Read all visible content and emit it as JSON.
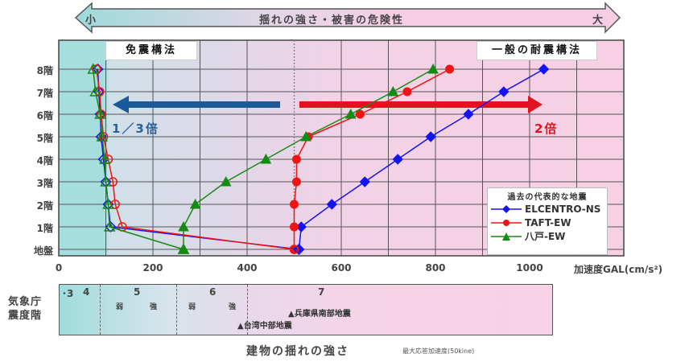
{
  "banner": {
    "left_label": "小",
    "center_label": "揺れの強さ・被害の危険性",
    "right_label": "大"
  },
  "annotations": {
    "isolation_box": "免震構法",
    "conventional_box": "一般の耐震構法",
    "isolation_ratio": "1／3倍",
    "conventional_ratio": "2倍",
    "isolation_color": "#1a5a9a",
    "conventional_color": "#e0141e"
  },
  "axis": {
    "x_unit": "加速度GAL(cm/s²)",
    "x_ticks": [
      "0",
      "200",
      "400",
      "600",
      "800",
      "1000"
    ],
    "y_ticks": [
      "8階",
      "7階",
      "6階",
      "5階",
      "4階",
      "3階",
      "2階",
      "1階",
      "地盤"
    ]
  },
  "legend": {
    "title": "過去の代表的な地震",
    "items": [
      {
        "label": "ELCENTRO-NS",
        "color": "#1414f0",
        "marker": "diamond"
      },
      {
        "label": "TAFT-EW",
        "color": "#f01414",
        "marker": "circle"
      },
      {
        "label": "八戸-EW",
        "color": "#148c14",
        "marker": "triangle"
      }
    ]
  },
  "jma_scale": {
    "label_line1": "気象庁",
    "label_line2": "震度階",
    "levels": [
      {
        "num": "･3",
        "x": 2
      },
      {
        "num": "4",
        "x": 30
      },
      {
        "num": "5",
        "x": 160,
        "weak": "弱",
        "strong": "強"
      },
      {
        "num": "6",
        "x": 318,
        "weak": "弱",
        "strong": "強"
      },
      {
        "num": "7",
        "x": 555
      }
    ],
    "events": [
      {
        "label": "▲兵庫県南部地震"
      },
      {
        "label": "▲台湾中部地震"
      }
    ]
  },
  "footer": {
    "title": "建物の揺れの強さ",
    "subtitle": "最大応答加速度(50kine)"
  },
  "chart_data": {
    "type": "line",
    "title": "揺れの強さ・被害の危険性",
    "xlabel": "加速度GAL(cm/s²)",
    "ylabel": "",
    "xlim": [
      0,
      1200
    ],
    "categories": [
      "地盤",
      "1階",
      "2階",
      "3階",
      "4階",
      "5階",
      "6階",
      "7階",
      "8階"
    ],
    "series": [
      {
        "name": "ELCENTRO-NS (一般の耐震構法)",
        "color": "#1414f0",
        "marker": "diamond",
        "values": [
          510,
          515,
          580,
          650,
          720,
          790,
          870,
          945,
          1030
        ]
      },
      {
        "name": "TAFT-EW (一般の耐震構法)",
        "color": "#f01414",
        "marker": "circle",
        "values": [
          500,
          500,
          500,
          505,
          505,
          530,
          640,
          740,
          830
        ]
      },
      {
        "name": "八戸-EW (一般の耐震構法)",
        "color": "#148c14",
        "marker": "triangle",
        "values": [
          265,
          265,
          290,
          355,
          440,
          525,
          620,
          710,
          795
        ]
      },
      {
        "name": "ELCENTRO-NS (免震構法)",
        "color": "#1414f0",
        "marker": "diamond-open",
        "values": [
          510,
          110,
          105,
          100,
          95,
          90,
          88,
          85,
          83
        ]
      },
      {
        "name": "TAFT-EW (免震構法)",
        "color": "#f01414",
        "marker": "circle-open",
        "values": [
          500,
          135,
          120,
          115,
          105,
          95,
          90,
          87,
          80
        ]
      },
      {
        "name": "八戸-EW (免震構法)",
        "color": "#148c14",
        "marker": "triangle-open",
        "values": [
          265,
          108,
          105,
          100,
          98,
          92,
          88,
          78,
          73
        ]
      }
    ],
    "reference_line": {
      "x": 500,
      "style": "dashed"
    },
    "arrows": [
      {
        "label": "1／3倍",
        "from": 480,
        "to": 120,
        "color": "#1a5a9a"
      },
      {
        "label": "2倍",
        "from": 520,
        "to": 1030,
        "color": "#e0141e"
      }
    ],
    "grid": true,
    "legend_position": "lower right"
  }
}
